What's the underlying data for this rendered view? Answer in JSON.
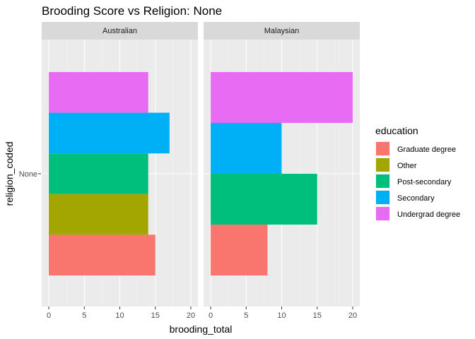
{
  "chart_data": {
    "type": "bar",
    "orientation": "horizontal",
    "title": "Brooding Score vs Religion: None",
    "xlabel": "brooding_total",
    "ylabel": "religion_coded",
    "y_category": "None",
    "xlim": [
      -1,
      21
    ],
    "xticks": [
      0,
      5,
      10,
      15,
      20
    ],
    "grid": true,
    "legend": {
      "title": "education",
      "placement": "right",
      "entries": [
        {
          "name": "Graduate degree",
          "color": "#F8766D"
        },
        {
          "name": "Other",
          "color": "#A3A500"
        },
        {
          "name": "Post-secondary",
          "color": "#00BF7D"
        },
        {
          "name": "Secondary",
          "color": "#00B0F6"
        },
        {
          "name": "Undergrad degree",
          "color": "#E76BF3"
        }
      ]
    },
    "facets": [
      {
        "label": "Australian",
        "bars": [
          {
            "education": "Graduate degree",
            "value": 15
          },
          {
            "education": "Other",
            "value": 14
          },
          {
            "education": "Post-secondary",
            "value": 14
          },
          {
            "education": "Secondary",
            "value": 17
          },
          {
            "education": "Undergrad degree",
            "value": 14
          }
        ]
      },
      {
        "label": "Malaysian",
        "bars": [
          {
            "education": "Graduate degree",
            "value": 8
          },
          {
            "education": "Post-secondary",
            "value": 15
          },
          {
            "education": "Secondary",
            "value": 10
          },
          {
            "education": "Undergrad degree",
            "value": 20
          }
        ]
      }
    ]
  }
}
